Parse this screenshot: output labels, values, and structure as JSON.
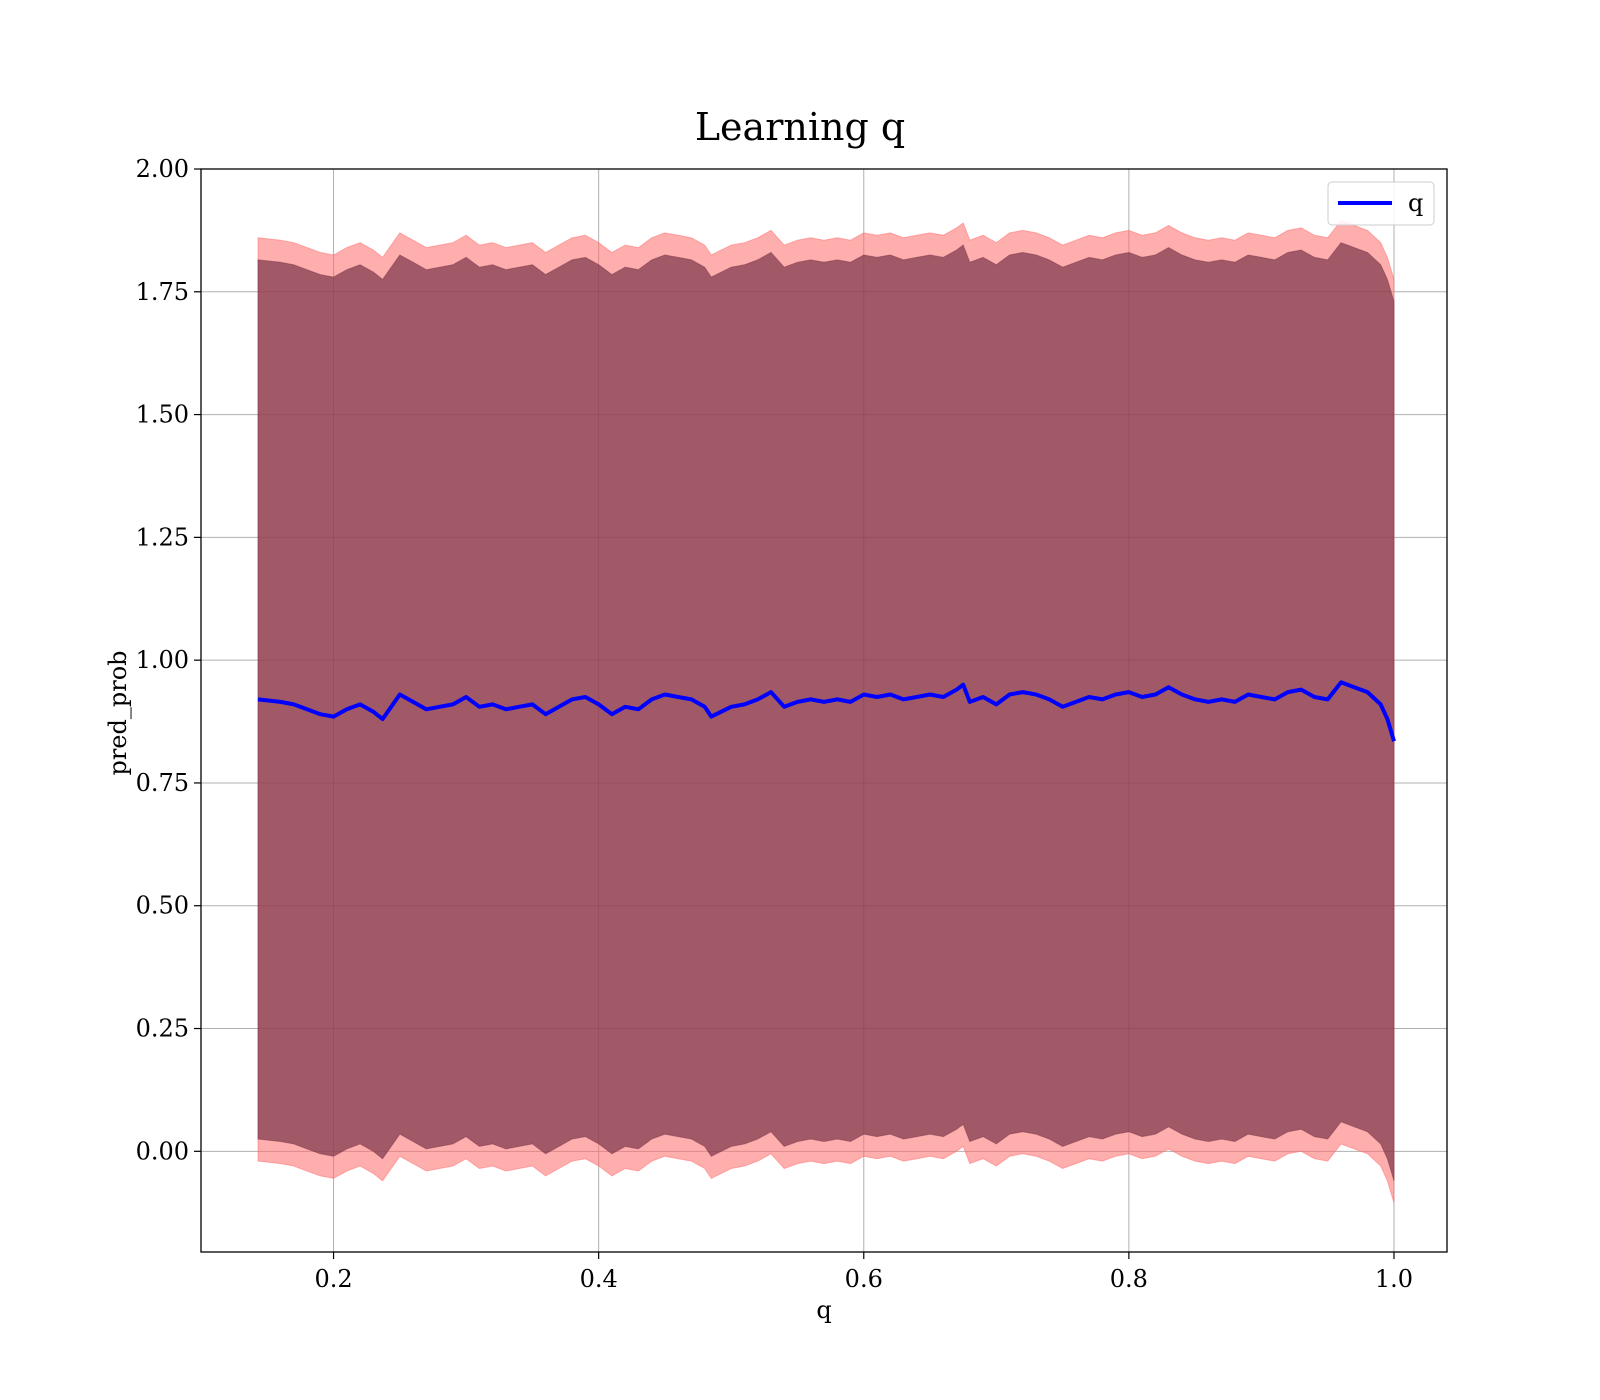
{
  "chart_data": {
    "type": "line",
    "title": "Learning q",
    "xlabel": "q",
    "ylabel": "pred_prob",
    "xlim": [
      0.1,
      1.04
    ],
    "ylim": [
      -0.205,
      2.0
    ],
    "xticks": [
      0.2,
      0.4,
      0.6,
      0.8,
      1.0
    ],
    "xtick_labels": [
      "0.2",
      "0.4",
      "0.6",
      "0.8",
      "1.0"
    ],
    "yticks": [
      0.0,
      0.25,
      0.5,
      0.75,
      1.0,
      1.25,
      1.5,
      1.75,
      2.0
    ],
    "ytick_labels": [
      "0.00",
      "0.25",
      "0.50",
      "0.75",
      "1.00",
      "1.25",
      "1.50",
      "1.75",
      "2.00"
    ],
    "grid": true,
    "legend_position": "top-right",
    "series": [
      {
        "name": "q",
        "color": "#0000ff",
        "x": [
          0.143,
          0.16,
          0.17,
          0.18,
          0.19,
          0.2,
          0.21,
          0.22,
          0.23,
          0.237,
          0.25,
          0.26,
          0.27,
          0.28,
          0.29,
          0.3,
          0.31,
          0.32,
          0.33,
          0.34,
          0.35,
          0.36,
          0.37,
          0.38,
          0.39,
          0.4,
          0.41,
          0.42,
          0.43,
          0.44,
          0.45,
          0.46,
          0.47,
          0.48,
          0.485,
          0.5,
          0.51,
          0.52,
          0.53,
          0.54,
          0.55,
          0.56,
          0.57,
          0.58,
          0.59,
          0.6,
          0.61,
          0.62,
          0.63,
          0.64,
          0.65,
          0.66,
          0.67,
          0.675,
          0.68,
          0.69,
          0.7,
          0.71,
          0.72,
          0.73,
          0.74,
          0.75,
          0.76,
          0.77,
          0.78,
          0.79,
          0.8,
          0.81,
          0.82,
          0.83,
          0.84,
          0.85,
          0.86,
          0.87,
          0.88,
          0.89,
          0.9,
          0.91,
          0.92,
          0.93,
          0.94,
          0.95,
          0.96,
          0.965,
          0.97,
          0.98,
          0.99,
          0.995,
          1.0
        ],
        "y": [
          0.92,
          0.915,
          0.91,
          0.9,
          0.89,
          0.885,
          0.9,
          0.91,
          0.895,
          0.88,
          0.93,
          0.915,
          0.9,
          0.905,
          0.91,
          0.925,
          0.905,
          0.91,
          0.9,
          0.905,
          0.91,
          0.89,
          0.905,
          0.92,
          0.925,
          0.91,
          0.89,
          0.905,
          0.9,
          0.92,
          0.93,
          0.925,
          0.92,
          0.905,
          0.885,
          0.905,
          0.91,
          0.92,
          0.935,
          0.905,
          0.915,
          0.92,
          0.915,
          0.92,
          0.915,
          0.93,
          0.925,
          0.93,
          0.92,
          0.925,
          0.93,
          0.925,
          0.94,
          0.95,
          0.915,
          0.925,
          0.91,
          0.93,
          0.935,
          0.93,
          0.92,
          0.905,
          0.915,
          0.925,
          0.92,
          0.93,
          0.935,
          0.925,
          0.93,
          0.945,
          0.93,
          0.92,
          0.915,
          0.92,
          0.915,
          0.93,
          0.925,
          0.92,
          0.935,
          0.94,
          0.925,
          0.92,
          0.955,
          0.95,
          0.945,
          0.935,
          0.91,
          0.88,
          0.835
        ]
      }
    ],
    "bands": [
      {
        "label": "outer band (light red)",
        "color": "#ff6b6b",
        "opacity": 0.55,
        "offset_above": 0.94,
        "offset_below": 0.94
      },
      {
        "label": "inner band (dark maroon)",
        "color": "#7a3448",
        "opacity": 0.7,
        "offset_above": 0.895,
        "offset_below": 0.895
      }
    ]
  }
}
